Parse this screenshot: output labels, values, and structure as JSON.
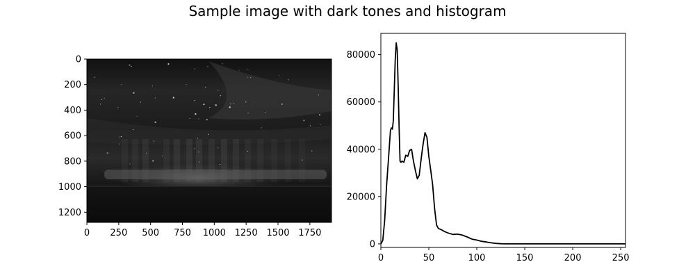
{
  "figure": {
    "title": "Sample image with dark tones and histogram"
  },
  "chart_data": [
    {
      "type": "image",
      "title": "",
      "xlabel": "",
      "ylabel": "",
      "xlim": [
        0,
        1920
      ],
      "ylim": [
        1280,
        0
      ],
      "x_ticks": [
        0,
        250,
        500,
        750,
        1000,
        1250,
        1500,
        1750
      ],
      "y_ticks": [
        0,
        200,
        400,
        600,
        800,
        1000,
        1200
      ],
      "colormap": "gray",
      "grid": false
    },
    {
      "type": "line",
      "title": "",
      "xlabel": "",
      "ylabel": "",
      "xlim": [
        0,
        255
      ],
      "ylim": [
        -1500,
        89000
      ],
      "x_ticks": [
        0,
        50,
        100,
        150,
        200,
        250
      ],
      "y_ticks": [
        0,
        20000,
        40000,
        60000,
        80000
      ],
      "grid": false,
      "series": [
        {
          "color": "#000000",
          "x": [
            0,
            2,
            4,
            6,
            8,
            10,
            11,
            12,
            13,
            14,
            15,
            16,
            17,
            18,
            19,
            20,
            21,
            22,
            24,
            26,
            28,
            30,
            32,
            34,
            36,
            38,
            40,
            42,
            44,
            46,
            48,
            50,
            52,
            54,
            56,
            58,
            60,
            62,
            64,
            66,
            70,
            75,
            80,
            85,
            90,
            95,
            100,
            105,
            110,
            115,
            120,
            125,
            130,
            150,
            200,
            255
          ],
          "y": [
            0,
            1500,
            10000,
            25000,
            36000,
            48000,
            49000,
            48500,
            52000,
            65000,
            78000,
            85000,
            82000,
            68000,
            50000,
            35000,
            34500,
            35000,
            34500,
            37500,
            37000,
            39500,
            40000,
            35000,
            31000,
            27500,
            29000,
            36000,
            42000,
            47000,
            45000,
            37000,
            31000,
            25000,
            15000,
            8000,
            6500,
            6200,
            5800,
            5300,
            4600,
            4000,
            4100,
            3700,
            2900,
            2000,
            1600,
            1100,
            800,
            450,
            200,
            50,
            0,
            0,
            0,
            0
          ]
        }
      ]
    }
  ]
}
